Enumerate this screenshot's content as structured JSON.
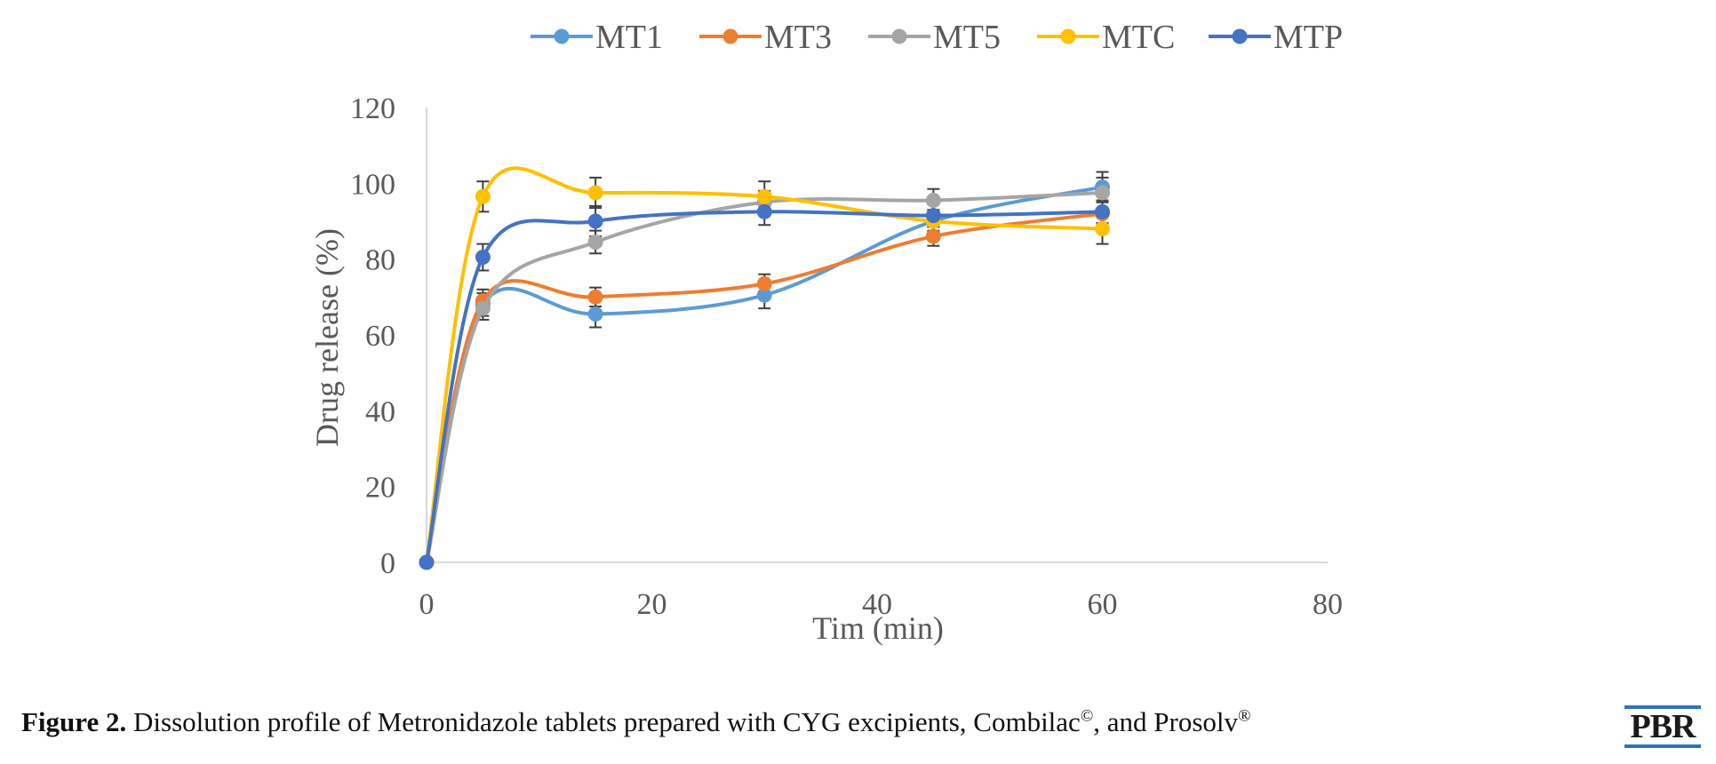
{
  "chart_data": {
    "type": "line",
    "xlabel": "Tim (min)",
    "ylabel": "Drug release (%)",
    "xlim": [
      0,
      80
    ],
    "ylim": [
      0,
      120
    ],
    "xticks": [
      0,
      20,
      40,
      60,
      80
    ],
    "yticks": [
      0,
      20,
      40,
      60,
      80,
      100,
      120
    ],
    "grid": false,
    "legend_position": "top",
    "smooth": true,
    "x": [
      0,
      5,
      15,
      30,
      45,
      60
    ],
    "series": [
      {
        "name": "MT1",
        "color": "#5b9bd5",
        "values": [
          0,
          68,
          65.5,
          70.5,
          90,
          99
        ],
        "errors": [
          0,
          3,
          3.5,
          3.5,
          2.5,
          4
        ]
      },
      {
        "name": "MT3",
        "color": "#ed7d31",
        "values": [
          0,
          69,
          70,
          73.5,
          86,
          92
        ],
        "errors": [
          0,
          3,
          2.5,
          2.5,
          2.5,
          3
        ]
      },
      {
        "name": "MT5",
        "color": "#a5a5a5",
        "values": [
          0,
          67,
          84.5,
          95,
          95.5,
          97.5
        ],
        "errors": [
          0,
          3,
          3,
          3,
          3,
          4
        ]
      },
      {
        "name": "MTC",
        "color": "#ffc000",
        "values": [
          0,
          96.5,
          97.5,
          96.5,
          90,
          88
        ],
        "errors": [
          0,
          4,
          4,
          4,
          3,
          4
        ]
      },
      {
        "name": "MTP",
        "color": "#4472c4",
        "values": [
          0,
          80.5,
          90,
          92.5,
          91.5,
          92.5
        ],
        "errors": [
          0,
          3.5,
          4,
          3.5,
          3,
          3
        ]
      }
    ]
  },
  "caption": {
    "label": "Figure 2.",
    "text_before": " Dissolution profile of Metronidazole tablets prepared with CYG excipients, Combilac",
    "sup1": "©",
    "text_middle": ", and Prosolv",
    "sup2": "®"
  },
  "logo": {
    "text": "PBR"
  }
}
